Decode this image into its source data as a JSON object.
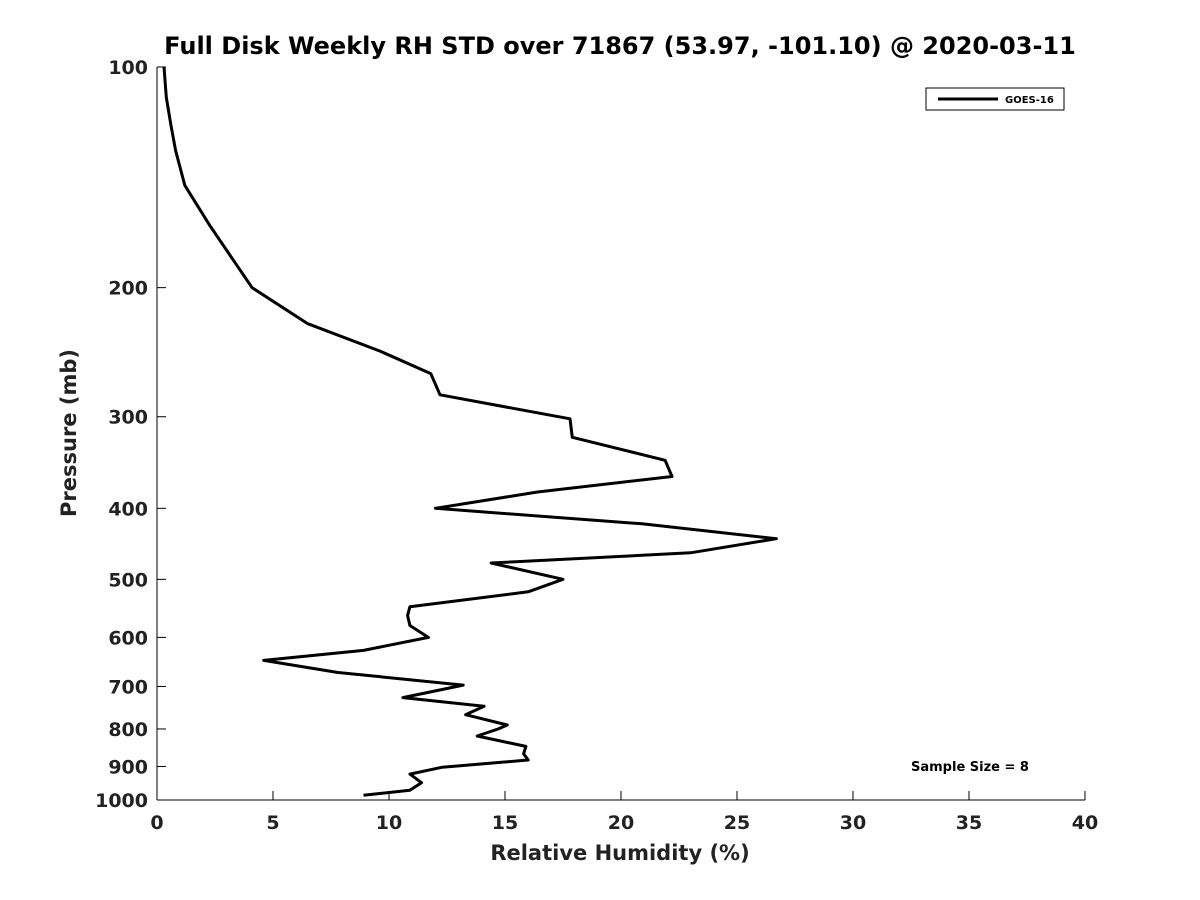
{
  "chart_data": {
    "type": "line",
    "title": "Full Disk Weekly RH STD over 71867 (53.97, -101.10) @ 2020-03-11",
    "xlabel": "Relative Humidity (%)",
    "ylabel": "Pressure (mb)",
    "xlim": [
      0,
      40
    ],
    "ylim": [
      1000,
      100
    ],
    "y_scale": "log",
    "x_ticks": [
      "0",
      "5",
      "10",
      "15",
      "20",
      "25",
      "30",
      "35",
      "40"
    ],
    "y_ticks": [
      "100",
      "200",
      "300",
      "400",
      "500",
      "600",
      "700",
      "800",
      "900",
      "1000"
    ],
    "grid": false,
    "legend_position": "top-right",
    "annotation": "Sample Size = 8",
    "series": [
      {
        "name": "GOES-16",
        "color": "#000000",
        "x": [
          0.3,
          0.4,
          0.6,
          0.8,
          1.2,
          2.3,
          4.1,
          6.5,
          9.6,
          11.8,
          12.2,
          17.8,
          17.9,
          21.9,
          22.2,
          16.4,
          12.0,
          20.9,
          26.7,
          23.0,
          14.4,
          17.5,
          16.0,
          10.9,
          10.8,
          10.9,
          11.7,
          8.9,
          4.6,
          7.8,
          13.2,
          10.6,
          14.1,
          13.3,
          15.1,
          14.7,
          13.8,
          15.9,
          15.8,
          16.0,
          12.3,
          10.9,
          11.4,
          10.9,
          8.9
        ],
        "y": [
          100,
          110,
          120,
          130,
          145,
          165,
          200,
          224,
          244,
          262,
          280,
          302,
          320,
          344,
          362,
          380,
          400,
          420,
          440,
          460,
          475,
          500,
          520,
          545,
          560,
          578,
          600,
          625,
          645,
          670,
          697,
          725,
          745,
          765,
          790,
          800,
          818,
          845,
          865,
          882,
          902,
          922,
          947,
          970,
          985
        ]
      }
    ]
  }
}
